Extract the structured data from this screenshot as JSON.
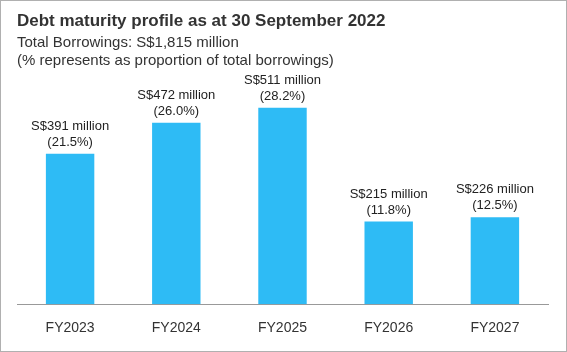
{
  "chart_data": {
    "type": "bar",
    "title": "Debt maturity profile as at 30 September 2022",
    "subtitle": [
      "Total Borrowings: S$1,815 million",
      "(% represents as proportion of total borrowings)"
    ],
    "categories": [
      "FY2023",
      "FY2024",
      "FY2025",
      "FY2026",
      "FY2027"
    ],
    "values": [
      391,
      472,
      511,
      215,
      226
    ],
    "value_labels": [
      [
        "S$391 million",
        "(21.5%)"
      ],
      [
        "S$472 million",
        "(26.0%)"
      ],
      [
        "S$511 million",
        "(28.2%)"
      ],
      [
        "S$215 million",
        "(11.8%)"
      ],
      [
        "S$226 million",
        "(12.5%)"
      ]
    ],
    "color": "#2ebbf5",
    "ylim": [
      0,
      600
    ],
    "yticks": [
      0,
      100,
      200,
      300,
      400,
      500,
      600
    ],
    "grid": false,
    "data_labels": true,
    "tick_labels": "x"
  }
}
